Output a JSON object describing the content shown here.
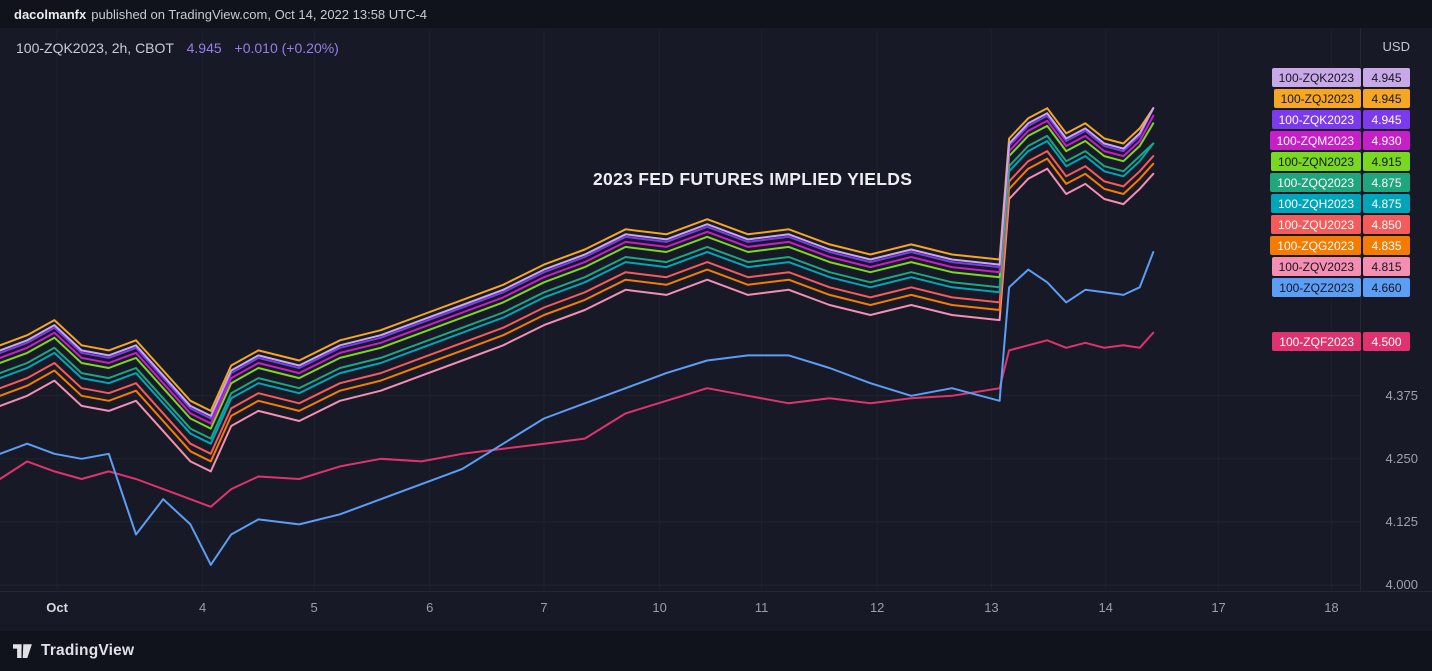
{
  "publish_bar": {
    "author": "dacolmanfx",
    "rest": "published on TradingView.com, Oct 14, 2022 13:58 UTC-4"
  },
  "legend": {
    "symbol": "100-ZQK2023, 2h, CBOT",
    "price": "4.945",
    "change": "+0.010 (+0.20%)",
    "accent_color": "#9B7BEA"
  },
  "price_scale": {
    "currency": "USD"
  },
  "footer": {
    "brand": "TradingView"
  },
  "chart_data": {
    "type": "line",
    "title": "2023 FED FUTURES IMPLIED YIELDS",
    "x_unit": "percent_of_plot_width",
    "ylim": [
      3.99,
      5.1
    ],
    "yticks": [
      4.375,
      4.25,
      4.125,
      4.0
    ],
    "xticks": [
      {
        "label": "Oct",
        "pos": 4.2,
        "major": true
      },
      {
        "label": "4",
        "pos": 14.9
      },
      {
        "label": "5",
        "pos": 23.1
      },
      {
        "label": "6",
        "pos": 31.6
      },
      {
        "label": "7",
        "pos": 40.0
      },
      {
        "label": "10",
        "pos": 48.5
      },
      {
        "label": "11",
        "pos": 56.0
      },
      {
        "label": "12",
        "pos": 64.5
      },
      {
        "label": "13",
        "pos": 72.9
      },
      {
        "label": "14",
        "pos": 81.3
      },
      {
        "label": "17",
        "pos": 89.6
      },
      {
        "label": "18",
        "pos": 97.9
      }
    ],
    "x": [
      0,
      2,
      4,
      6,
      8,
      10,
      12,
      14,
      15.5,
      17,
      19,
      22,
      25,
      28,
      31,
      34,
      37,
      40,
      43,
      46,
      49,
      52,
      55,
      58,
      61,
      64,
      67,
      70,
      73.5,
      74.2,
      75.6,
      77,
      78.4,
      79.8,
      81.2,
      82.6,
      83.8,
      84.8
    ],
    "series": [
      {
        "name": "100-ZQK2023",
        "value": "4.945",
        "color": "#C8A9E8",
        "fg": "#14161F",
        "values": [
          4.465,
          4.485,
          4.515,
          4.465,
          4.455,
          4.475,
          4.415,
          4.355,
          4.335,
          4.425,
          4.455,
          4.435,
          4.475,
          4.495,
          4.525,
          4.555,
          4.585,
          4.625,
          4.655,
          4.695,
          4.685,
          4.715,
          4.685,
          4.695,
          4.665,
          4.645,
          4.665,
          4.645,
          4.635,
          4.875,
          4.915,
          4.935,
          4.885,
          4.905,
          4.875,
          4.865,
          4.895,
          4.945
        ]
      },
      {
        "name": "100-ZQJ2023",
        "value": "4.945",
        "color": "#F5A623",
        "fg": "#14161F",
        "values": [
          4.475,
          4.495,
          4.525,
          4.475,
          4.465,
          4.485,
          4.425,
          4.365,
          4.345,
          4.435,
          4.465,
          4.445,
          4.485,
          4.505,
          4.535,
          4.565,
          4.595,
          4.635,
          4.665,
          4.705,
          4.695,
          4.725,
          4.695,
          4.705,
          4.675,
          4.655,
          4.675,
          4.655,
          4.645,
          4.885,
          4.925,
          4.945,
          4.895,
          4.915,
          4.885,
          4.875,
          4.905,
          4.945
        ]
      },
      {
        "name": "100-ZQK2023",
        "value": "4.945",
        "color": "#7C3AED",
        "fg": "#FFFFFF",
        "values": [
          4.46,
          4.48,
          4.51,
          4.46,
          4.45,
          4.47,
          4.41,
          4.35,
          4.33,
          4.42,
          4.45,
          4.43,
          4.47,
          4.49,
          4.52,
          4.55,
          4.58,
          4.62,
          4.65,
          4.69,
          4.68,
          4.71,
          4.68,
          4.69,
          4.66,
          4.64,
          4.66,
          4.64,
          4.63,
          4.87,
          4.91,
          4.93,
          4.88,
          4.9,
          4.87,
          4.86,
          4.89,
          4.945
        ]
      },
      {
        "name": "100-ZQM2023",
        "value": "4.930",
        "color": "#C71FC7",
        "fg": "#FFFFFF",
        "values": [
          4.45,
          4.47,
          4.5,
          4.45,
          4.44,
          4.46,
          4.4,
          4.34,
          4.32,
          4.41,
          4.44,
          4.42,
          4.46,
          4.48,
          4.51,
          4.54,
          4.57,
          4.61,
          4.64,
          4.68,
          4.67,
          4.7,
          4.67,
          4.68,
          4.65,
          4.63,
          4.65,
          4.63,
          4.62,
          4.86,
          4.9,
          4.92,
          4.87,
          4.89,
          4.86,
          4.85,
          4.88,
          4.93
        ]
      },
      {
        "name": "100-ZQN2023",
        "value": "4.915",
        "color": "#7BD821",
        "fg": "#14161F",
        "values": [
          4.44,
          4.46,
          4.49,
          4.44,
          4.43,
          4.45,
          4.39,
          4.33,
          4.31,
          4.4,
          4.43,
          4.41,
          4.45,
          4.47,
          4.5,
          4.53,
          4.56,
          4.6,
          4.63,
          4.67,
          4.66,
          4.69,
          4.66,
          4.67,
          4.64,
          4.62,
          4.64,
          4.62,
          4.61,
          4.85,
          4.89,
          4.91,
          4.86,
          4.88,
          4.85,
          4.84,
          4.87,
          4.915
        ]
      },
      {
        "name": "100-ZQQ2023",
        "value": "4.875",
        "color": "#1FA67D",
        "fg": "#FFFFFF",
        "values": [
          4.42,
          4.44,
          4.47,
          4.42,
          4.41,
          4.43,
          4.37,
          4.31,
          4.29,
          4.38,
          4.41,
          4.39,
          4.43,
          4.45,
          4.48,
          4.51,
          4.54,
          4.58,
          4.61,
          4.65,
          4.64,
          4.67,
          4.64,
          4.65,
          4.62,
          4.6,
          4.62,
          4.6,
          4.59,
          4.83,
          4.87,
          4.89,
          4.84,
          4.86,
          4.83,
          4.82,
          4.85,
          4.875
        ]
      },
      {
        "name": "100-ZQH2023",
        "value": "4.875",
        "color": "#00A6B8",
        "fg": "#FFFFFF",
        "values": [
          4.41,
          4.43,
          4.46,
          4.41,
          4.4,
          4.42,
          4.36,
          4.3,
          4.28,
          4.37,
          4.4,
          4.38,
          4.42,
          4.44,
          4.47,
          4.5,
          4.53,
          4.57,
          4.6,
          4.64,
          4.63,
          4.66,
          4.63,
          4.64,
          4.61,
          4.59,
          4.61,
          4.59,
          4.58,
          4.82,
          4.86,
          4.88,
          4.83,
          4.85,
          4.82,
          4.81,
          4.84,
          4.875
        ]
      },
      {
        "name": "100-ZQU2023",
        "value": "4.850",
        "color": "#F45B5B",
        "fg": "#FFFFFF",
        "values": [
          4.39,
          4.41,
          4.44,
          4.39,
          4.38,
          4.4,
          4.34,
          4.28,
          4.26,
          4.35,
          4.38,
          4.36,
          4.4,
          4.42,
          4.45,
          4.48,
          4.51,
          4.55,
          4.58,
          4.62,
          4.61,
          4.64,
          4.61,
          4.62,
          4.59,
          4.57,
          4.59,
          4.57,
          4.56,
          4.8,
          4.84,
          4.86,
          4.81,
          4.83,
          4.8,
          4.79,
          4.82,
          4.85
        ]
      },
      {
        "name": "100-ZQG2023",
        "value": "4.835",
        "color": "#F57C00",
        "fg": "#FFFFFF",
        "values": [
          4.375,
          4.395,
          4.425,
          4.375,
          4.365,
          4.385,
          4.325,
          4.265,
          4.245,
          4.335,
          4.365,
          4.345,
          4.385,
          4.405,
          4.435,
          4.465,
          4.495,
          4.535,
          4.565,
          4.605,
          4.595,
          4.625,
          4.595,
          4.605,
          4.575,
          4.555,
          4.575,
          4.555,
          4.545,
          4.785,
          4.825,
          4.845,
          4.795,
          4.815,
          4.785,
          4.775,
          4.805,
          4.835
        ]
      },
      {
        "name": "100-ZQV2023",
        "value": "4.815",
        "color": "#F48FB1",
        "fg": "#14161F",
        "values": [
          4.355,
          4.375,
          4.405,
          4.355,
          4.345,
          4.365,
          4.305,
          4.245,
          4.225,
          4.315,
          4.345,
          4.325,
          4.365,
          4.385,
          4.415,
          4.445,
          4.475,
          4.515,
          4.545,
          4.585,
          4.575,
          4.605,
          4.575,
          4.585,
          4.555,
          4.535,
          4.555,
          4.535,
          4.525,
          4.765,
          4.805,
          4.825,
          4.775,
          4.795,
          4.765,
          4.755,
          4.785,
          4.815
        ]
      },
      {
        "name": "100-ZQZ2023",
        "value": "4.660",
        "color": "#5C9DF5",
        "fg": "#14161F",
        "values": [
          4.26,
          4.28,
          4.26,
          4.25,
          4.26,
          4.1,
          4.17,
          4.12,
          4.04,
          4.1,
          4.13,
          4.12,
          4.14,
          4.17,
          4.2,
          4.23,
          4.28,
          4.33,
          4.36,
          4.39,
          4.42,
          4.445,
          4.455,
          4.455,
          4.43,
          4.4,
          4.375,
          4.39,
          4.365,
          4.59,
          4.625,
          4.6,
          4.56,
          4.585,
          4.58,
          4.575,
          4.59,
          4.66
        ]
      },
      {
        "name": "100-ZQF2023",
        "value": "4.500",
        "color": "#E0336E",
        "fg": "#FFFFFF",
        "values": [
          4.21,
          4.245,
          4.225,
          4.21,
          4.225,
          4.21,
          4.19,
          4.17,
          4.155,
          4.19,
          4.215,
          4.21,
          4.235,
          4.25,
          4.245,
          4.26,
          4.27,
          4.28,
          4.29,
          4.34,
          4.365,
          4.39,
          4.375,
          4.36,
          4.37,
          4.36,
          4.37,
          4.375,
          4.39,
          4.465,
          4.475,
          4.485,
          4.47,
          4.48,
          4.47,
          4.475,
          4.47,
          4.5
        ]
      }
    ]
  }
}
